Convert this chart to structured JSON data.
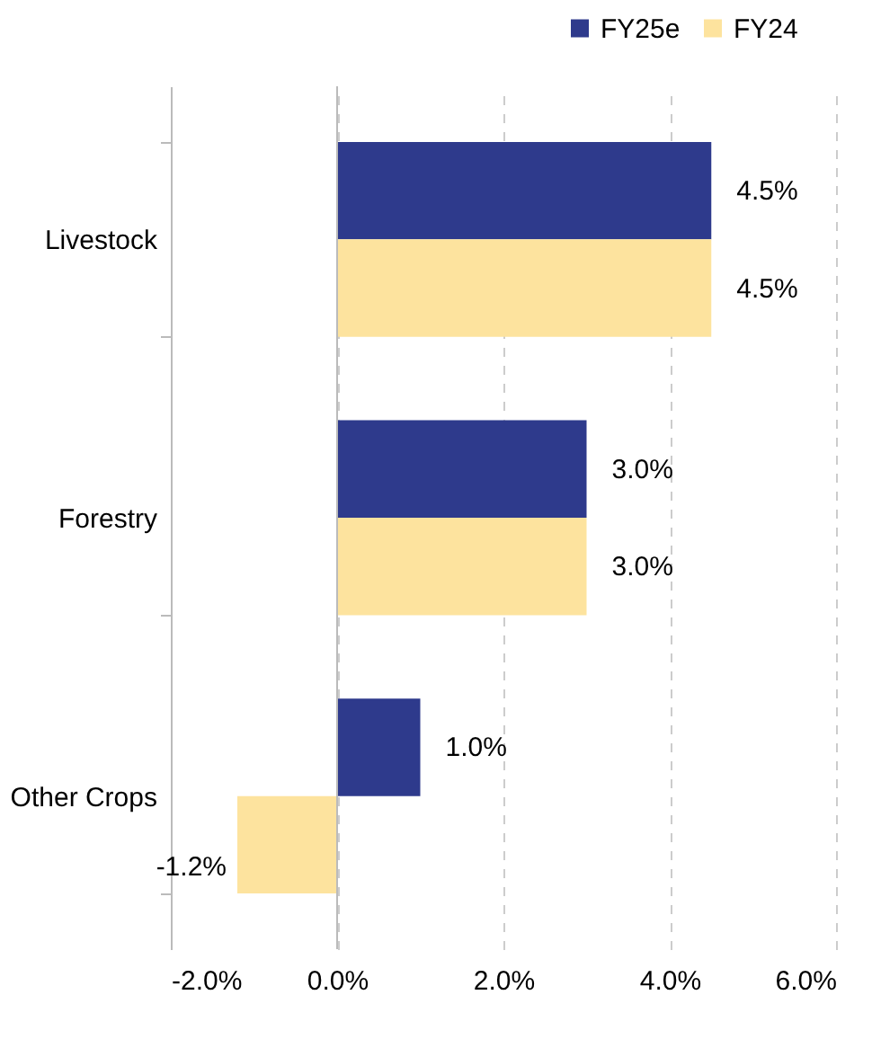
{
  "chart_data": {
    "type": "bar",
    "orientation": "horizontal",
    "categories": [
      "Livestock",
      "Forestry",
      "Other Crops"
    ],
    "series": [
      {
        "name": "FY25e",
        "color": "#2e3a8c",
        "values": [
          4.5,
          3.0,
          1.0
        ],
        "value_labels": [
          "4.5%",
          "3.0%",
          "1.0%"
        ]
      },
      {
        "name": "FY24",
        "color": "#fde39e",
        "values": [
          4.5,
          3.0,
          -1.2
        ],
        "value_labels": [
          "4.5%",
          "3.0%",
          "-1.2%"
        ]
      }
    ],
    "xlim": [
      -2,
      6
    ],
    "xticks": [
      {
        "value": -2,
        "label": "-2.0%"
      },
      {
        "value": 0,
        "label": "0.0%"
      },
      {
        "value": 2,
        "label": "2.0%"
      },
      {
        "value": 4,
        "label": "4.0%"
      },
      {
        "value": 6,
        "label": "6.0%"
      }
    ],
    "grid": "x",
    "legend": "top right"
  }
}
